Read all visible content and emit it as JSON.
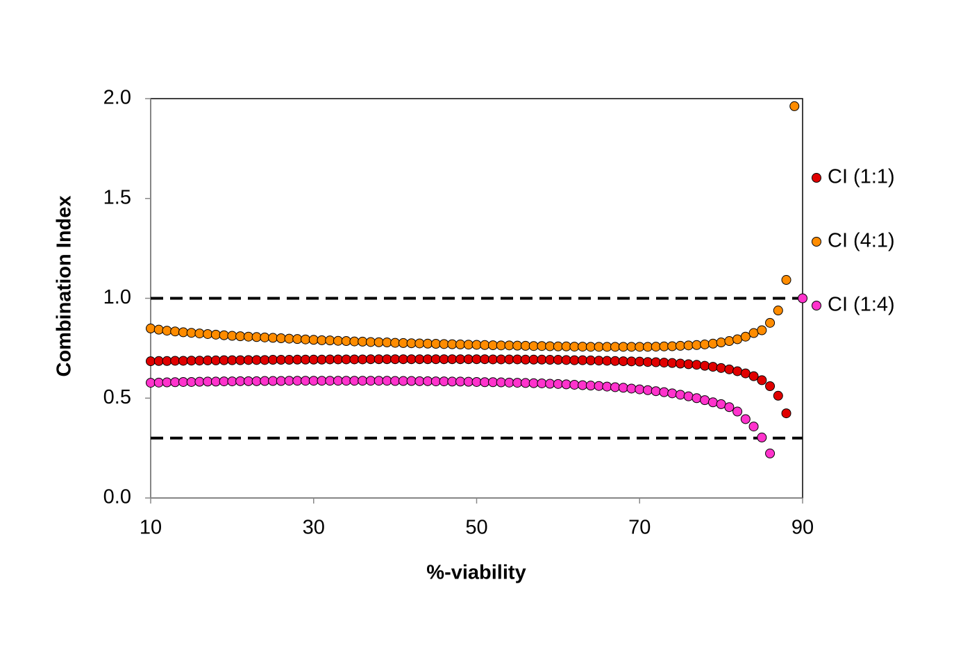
{
  "chart_data": {
    "type": "scatter",
    "xlabel": "%-viability",
    "ylabel": "Combination Index",
    "x": [
      10,
      11,
      12,
      13,
      14,
      15,
      16,
      17,
      18,
      19,
      20,
      21,
      22,
      23,
      24,
      25,
      26,
      27,
      28,
      29,
      30,
      31,
      32,
      33,
      34,
      35,
      36,
      37,
      38,
      39,
      40,
      41,
      42,
      43,
      44,
      45,
      46,
      47,
      48,
      49,
      50,
      51,
      52,
      53,
      54,
      55,
      56,
      57,
      58,
      59,
      60,
      61,
      62,
      63,
      64,
      65,
      66,
      67,
      68,
      69,
      70,
      71,
      72,
      73,
      74,
      75,
      76,
      77,
      78,
      79,
      80,
      81,
      82,
      83,
      84,
      85,
      86,
      87,
      88,
      89,
      90
    ],
    "series": [
      {
        "name": "CI (1:1)",
        "color": "#e00000",
        "values": [
          0.685,
          0.686,
          0.686,
          0.687,
          0.687,
          0.688,
          0.688,
          0.689,
          0.689,
          0.69,
          0.69,
          0.69,
          0.691,
          0.691,
          0.691,
          0.692,
          0.692,
          0.692,
          0.693,
          0.693,
          0.693,
          0.693,
          0.694,
          0.694,
          0.694,
          0.694,
          0.694,
          0.695,
          0.695,
          0.695,
          0.695,
          0.695,
          0.695,
          0.695,
          0.695,
          0.695,
          0.695,
          0.695,
          0.695,
          0.695,
          0.695,
          0.695,
          0.694,
          0.694,
          0.694,
          0.694,
          0.693,
          0.693,
          0.693,
          0.692,
          0.692,
          0.691,
          0.69,
          0.69,
          0.689,
          0.688,
          0.687,
          0.686,
          0.685,
          0.684,
          0.683,
          0.681,
          0.68,
          0.678,
          0.676,
          0.673,
          0.67,
          0.667,
          0.662,
          0.657,
          0.651,
          0.644,
          0.635,
          0.624,
          0.61,
          0.59,
          0.56,
          0.512,
          0.424,
          null,
          null
        ]
      },
      {
        "name": "CI (4:1)",
        "color": "#ff8c00",
        "values": [
          0.849,
          0.843,
          0.838,
          0.834,
          0.83,
          0.827,
          0.824,
          0.821,
          0.818,
          0.815,
          0.812,
          0.81,
          0.808,
          0.806,
          0.804,
          0.802,
          0.8,
          0.798,
          0.796,
          0.794,
          0.792,
          0.79,
          0.789,
          0.787,
          0.786,
          0.784,
          0.783,
          0.781,
          0.78,
          0.779,
          0.777,
          0.776,
          0.775,
          0.774,
          0.773,
          0.772,
          0.771,
          0.77,
          0.769,
          0.768,
          0.767,
          0.766,
          0.765,
          0.764,
          0.764,
          0.763,
          0.762,
          0.761,
          0.761,
          0.76,
          0.759,
          0.759,
          0.758,
          0.758,
          0.757,
          0.757,
          0.757,
          0.757,
          0.757,
          0.757,
          0.757,
          0.757,
          0.758,
          0.759,
          0.76,
          0.762,
          0.764,
          0.766,
          0.769,
          0.773,
          0.779,
          0.786,
          0.795,
          0.808,
          0.826,
          0.84,
          0.877,
          0.939,
          1.092,
          1.962,
          null
        ]
      },
      {
        "name": "CI (1:4)",
        "color": "#ff33cc",
        "values": [
          0.577,
          0.578,
          0.579,
          0.58,
          0.581,
          0.581,
          0.582,
          0.583,
          0.583,
          0.584,
          0.584,
          0.585,
          0.585,
          0.585,
          0.586,
          0.586,
          0.586,
          0.587,
          0.587,
          0.587,
          0.587,
          0.587,
          0.587,
          0.587,
          0.587,
          0.587,
          0.587,
          0.587,
          0.587,
          0.587,
          0.586,
          0.586,
          0.586,
          0.585,
          0.585,
          0.584,
          0.584,
          0.583,
          0.583,
          0.582,
          0.581,
          0.58,
          0.58,
          0.579,
          0.578,
          0.577,
          0.576,
          0.575,
          0.574,
          0.572,
          0.571,
          0.569,
          0.567,
          0.565,
          0.563,
          0.561,
          0.558,
          0.555,
          0.552,
          0.548,
          0.544,
          0.54,
          0.535,
          0.53,
          0.524,
          0.517,
          0.509,
          0.5,
          0.49,
          0.479,
          0.47,
          0.455,
          0.433,
          0.395,
          0.358,
          0.303,
          0.223,
          null,
          null,
          null,
          1.0
        ]
      }
    ],
    "reference_lines": [
      1.0,
      0.3
    ],
    "xlim": [
      10,
      90
    ],
    "xticks": [
      10,
      30,
      50,
      70,
      90
    ],
    "ylim": [
      0,
      2.0
    ],
    "yticks": [
      {
        "value": 0,
        "label": "0.0"
      },
      {
        "value": 0.5,
        "label": "0.5"
      },
      {
        "value": 1.0,
        "label": "1.0"
      },
      {
        "value": 1.5,
        "label": "1.5"
      },
      {
        "value": 2.0,
        "label": "2.0"
      }
    ],
    "legend": "right"
  }
}
